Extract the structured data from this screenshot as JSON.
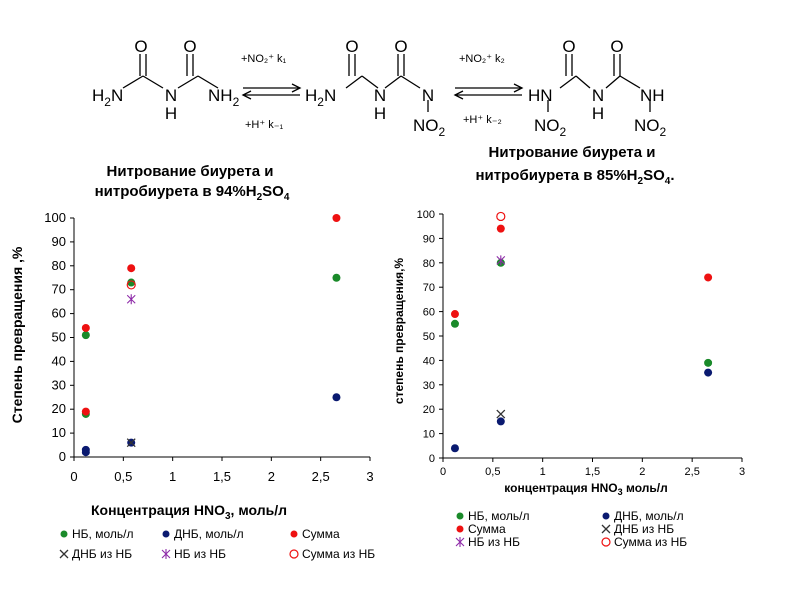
{
  "scheme": {
    "step1_top": "+NO₂⁺ k₁",
    "step1_bottom": "+H⁺ k₋₁",
    "step2_top": "+NO₂⁺ k₂",
    "step2_bottom": "+H⁺ k₋₂"
  },
  "colors": {
    "nb": "#1a8a2a",
    "dnb": "#0a1a70",
    "sum": "#ee1111",
    "dnb_from_nb": "#333333",
    "nb_from_nb": "#8e2aa8",
    "sum_from_nb": "#ee1111"
  },
  "chart_data": [
    {
      "type": "scatter",
      "title_line1": "Нитрование биурета и",
      "title_line2": "нитробиурета в 94%H",
      "title_sub": "2",
      "title_tail": "SO",
      "title_sub2": "4",
      "xlabel_main": "Концентрация HNO",
      "xlabel_sub": "3",
      "xlabel_tail": ", моль/л",
      "ylabel": "Степень превращения ,%",
      "xlim": [
        0,
        3
      ],
      "ylim": [
        0,
        100
      ],
      "xticks": [
        "0",
        "0,5",
        "1",
        "1,5",
        "2",
        "2,5",
        "3"
      ],
      "yticks": [
        "0",
        "10",
        "20",
        "30",
        "40",
        "50",
        "60",
        "70",
        "80",
        "90",
        "100"
      ],
      "series": [
        {
          "name": "НБ, моль/л",
          "marker": "dot",
          "color_key": "nb",
          "x": [
            0.12,
            0.12,
            0.58,
            2.66
          ],
          "y": [
            51,
            18,
            73,
            75
          ]
        },
        {
          "name": "ДНБ, моль/л",
          "marker": "dot",
          "color_key": "dnb",
          "x": [
            0.12,
            0.12,
            0.58,
            2.66
          ],
          "y": [
            3,
            2,
            6,
            25
          ]
        },
        {
          "name": "Сумма",
          "marker": "dot",
          "color_key": "sum",
          "x": [
            0.12,
            0.12,
            0.58,
            2.66
          ],
          "y": [
            54,
            19,
            79,
            100
          ]
        },
        {
          "name": "ДНБ из НБ",
          "marker": "x",
          "color_key": "dnb_from_nb",
          "x": [
            0.58
          ],
          "y": [
            6
          ]
        },
        {
          "name": "НБ из НБ",
          "marker": "star",
          "color_key": "nb_from_nb",
          "x": [
            0.58
          ],
          "y": [
            66
          ]
        },
        {
          "name": "Сумма из НБ",
          "marker": "circle",
          "color_key": "sum_from_nb",
          "x": [
            0.58
          ],
          "y": [
            72
          ]
        }
      ]
    },
    {
      "type": "scatter",
      "title_line1": "Нитрование биурета и",
      "title_line2": "нитробиурета в 85%H",
      "title_sub": "2",
      "title_tail": "SO",
      "title_sub2": "4",
      "title_end": ".",
      "xlabel_main": "концентрация HNO",
      "xlabel_sub": "3",
      "xlabel_tail": " моль/л",
      "ylabel": "степень превращения,%",
      "xlim": [
        0,
        3
      ],
      "ylim": [
        0,
        100
      ],
      "xticks": [
        "0",
        "0,5",
        "1",
        "1,5",
        "2",
        "2,5",
        "3"
      ],
      "yticks": [
        "0",
        "10",
        "20",
        "30",
        "40",
        "50",
        "60",
        "70",
        "80",
        "90",
        "100"
      ],
      "series": [
        {
          "name": "НБ, моль/л",
          "marker": "dot",
          "color_key": "nb",
          "x": [
            0.12,
            0.58,
            2.66
          ],
          "y": [
            55,
            80,
            39
          ]
        },
        {
          "name": "ДНБ, моль/л",
          "marker": "dot",
          "color_key": "dnb",
          "x": [
            0.12,
            0.58,
            2.66
          ],
          "y": [
            4,
            15,
            35
          ]
        },
        {
          "name": "Сумма",
          "marker": "dot",
          "color_key": "sum",
          "x": [
            0.12,
            0.58,
            2.66
          ],
          "y": [
            59,
            94,
            74
          ]
        },
        {
          "name": "ДНБ из НБ",
          "marker": "x",
          "color_key": "dnb_from_nb",
          "x": [
            0.58
          ],
          "y": [
            18
          ]
        },
        {
          "name": "НБ из НБ",
          "marker": "star",
          "color_key": "nb_from_nb",
          "x": [
            0.58
          ],
          "y": [
            81
          ]
        },
        {
          "name": "Сумма из НБ",
          "marker": "circle",
          "color_key": "sum_from_nb",
          "x": [
            0.58
          ],
          "y": [
            99
          ]
        }
      ]
    }
  ]
}
